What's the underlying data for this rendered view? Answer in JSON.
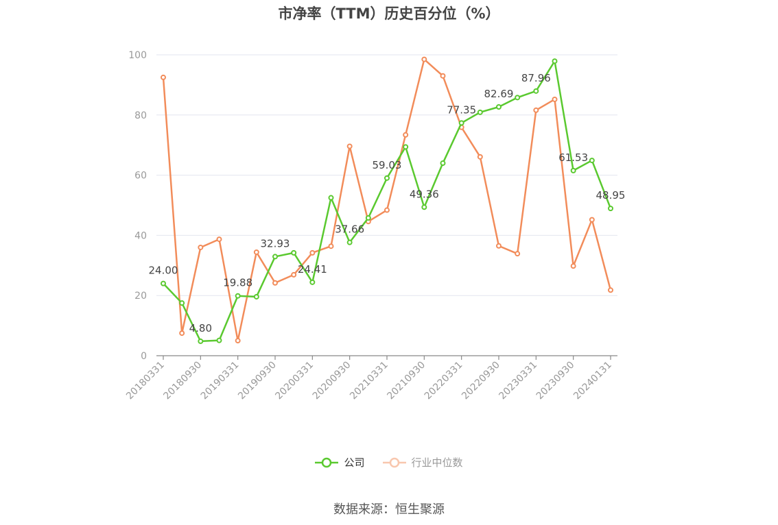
{
  "chart_data": {
    "type": "line",
    "title": "市净率（TTM）历史百分位（%）",
    "ylim": [
      0,
      100
    ],
    "yticks": [
      0,
      20,
      40,
      60,
      80,
      100
    ],
    "grid": true,
    "legend_position": "bottom",
    "x_tick_labels": [
      "20180331",
      "20180930",
      "20190331",
      "20190930",
      "20200331",
      "20200930",
      "20210331",
      "20210930",
      "20220331",
      "20220930",
      "20230331",
      "20230930",
      "20240131"
    ],
    "x": [
      "20180331",
      "20180630",
      "20180930",
      "20181231",
      "20190331",
      "20190630",
      "20190930",
      "20191231",
      "20200331",
      "20200630",
      "20200930",
      "20201231",
      "20210331",
      "20210630",
      "20210930",
      "20211231",
      "20220331",
      "20220630",
      "20220930",
      "20221231",
      "20230331",
      "20230630",
      "20230930",
      "20231231",
      "20240131"
    ],
    "series": [
      {
        "name": "公司",
        "color": "#5ac92f",
        "values": [
          24.0,
          17.5,
          4.8,
          5.1,
          19.88,
          19.6,
          32.93,
          34.2,
          24.41,
          52.5,
          37.66,
          45.8,
          59.03,
          69.4,
          49.36,
          64.0,
          77.35,
          80.9,
          82.69,
          85.8,
          87.96,
          97.9,
          61.53,
          64.9,
          48.95
        ],
        "labels": {
          "0": "24.00",
          "2": "4.80",
          "4": "19.88",
          "6": "32.93",
          "8": "24.41",
          "10": "37.66",
          "12": "59.03",
          "14": "49.36",
          "16": "77.35",
          "18": "82.69",
          "20": "87.96",
          "22": "61.53",
          "24": "48.95"
        }
      },
      {
        "name": "行业中位数",
        "color": "#f28c5a",
        "values": [
          92.5,
          7.5,
          36.0,
          38.7,
          5.0,
          34.4,
          24.2,
          26.9,
          34.2,
          36.4,
          69.6,
          44.6,
          48.4,
          73.4,
          98.5,
          93.0,
          75.9,
          66.1,
          36.5,
          33.9,
          81.6,
          85.2,
          29.8,
          45.2,
          21.8
        ]
      }
    ]
  },
  "source": "数据来源：恒生聚源"
}
